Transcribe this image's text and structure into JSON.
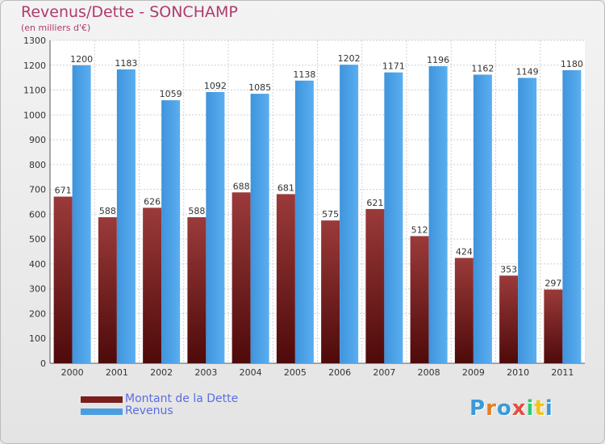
{
  "chart_data": {
    "type": "bar",
    "title": "Revenus/Dette - SONCHAMP",
    "subtitle": "(en milliers d'€)",
    "categories": [
      "2000",
      "2001",
      "2002",
      "2003",
      "2004",
      "2005",
      "2006",
      "2007",
      "2008",
      "2009",
      "2010",
      "2011"
    ],
    "series": [
      {
        "name": "Montant de la Dette",
        "color": "#7a1e1e",
        "values": [
          671,
          588,
          626,
          588,
          688,
          681,
          575,
          621,
          512,
          424,
          353,
          297
        ]
      },
      {
        "name": "Revenus",
        "color": "#4a9ee0",
        "values": [
          1200,
          1183,
          1059,
          1092,
          1085,
          1138,
          1202,
          1171,
          1196,
          1162,
          1149,
          1180
        ]
      }
    ],
    "ylim": [
      0,
      1300
    ],
    "yticks": [
      0,
      100,
      200,
      300,
      400,
      500,
      600,
      700,
      800,
      900,
      1000,
      1100,
      1200,
      1300
    ],
    "grid": true,
    "legend_position": "bottom-left"
  },
  "logo": {
    "letters": [
      {
        "ch": "P",
        "color": "#3a9ad9"
      },
      {
        "ch": "r",
        "color": "#e67e22"
      },
      {
        "ch": "o",
        "color": "#3a9ad9"
      },
      {
        "ch": "x",
        "color": "#e74c3c"
      },
      {
        "ch": "i",
        "color": "#2ecc71"
      },
      {
        "ch": "t",
        "color": "#f1c40f"
      },
      {
        "ch": "i",
        "color": "#3a9ad9"
      }
    ]
  }
}
